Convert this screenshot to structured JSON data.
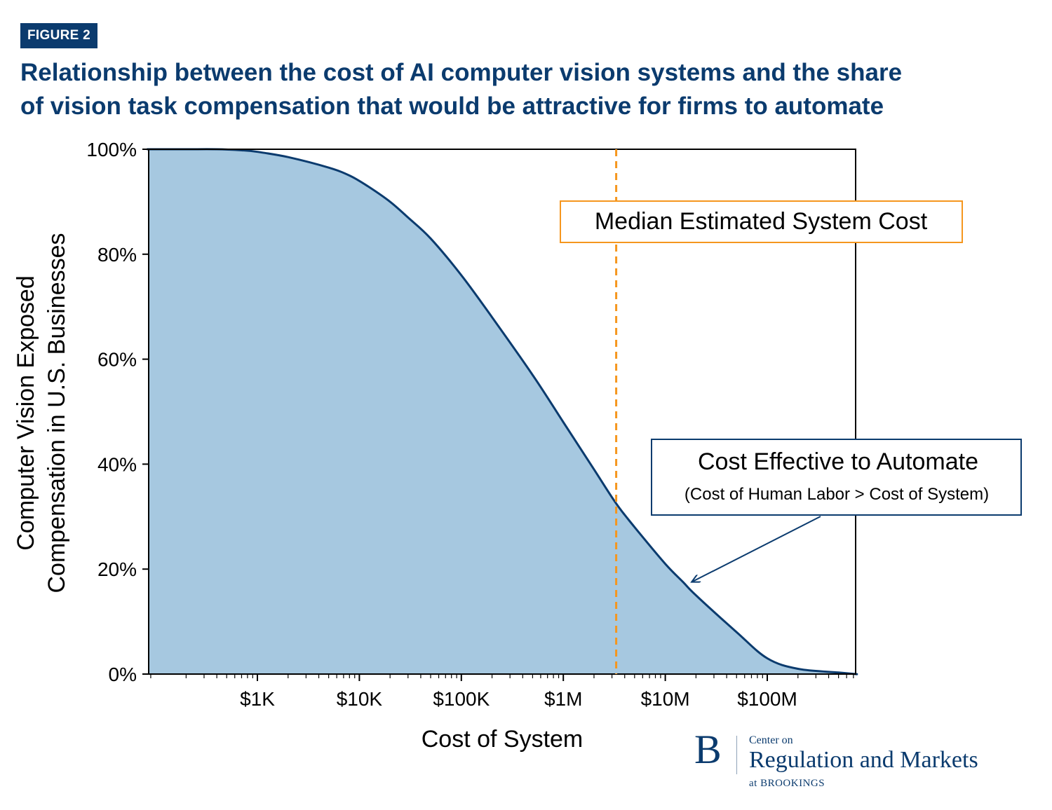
{
  "figure_label": "FIGURE 2",
  "title_lines": [
    "Relationship between the cost of AI computer vision systems and the share",
    "of vision task compensation that would be attractive for firms to automate"
  ],
  "colors": {
    "brand": "#0b3b6e",
    "fill": "#a6c8e0",
    "line": "#0b3b6e",
    "median_line": "#f5961e",
    "median_box": "#f5961e"
  },
  "chart_data": {
    "type": "area",
    "xscale": "log",
    "xlabel": "Cost of System",
    "ylabel_lines": [
      "Computer Vision Exposed",
      "Compensation in U.S. Businesses"
    ],
    "xlim": [
      10,
      100000000000
    ],
    "ylim": [
      0,
      100
    ],
    "xticks": [
      {
        "value": 1000,
        "label": "$1K"
      },
      {
        "value": 10000,
        "label": "$10K"
      },
      {
        "value": 100000,
        "label": "$100K"
      },
      {
        "value": 1000000,
        "label": "$1M"
      },
      {
        "value": 10000000,
        "label": "$10M"
      },
      {
        "value": 100000000,
        "label": "$100M"
      }
    ],
    "yticks": [
      {
        "value": 0,
        "label": "0%"
      },
      {
        "value": 20,
        "label": "20%"
      },
      {
        "value": 40,
        "label": "40%"
      },
      {
        "value": 60,
        "label": "60%"
      },
      {
        "value": 80,
        "label": "80%"
      },
      {
        "value": 100,
        "label": "100%"
      }
    ],
    "series": [
      {
        "x": [
          90,
          200,
          400,
          700,
          1000,
          2000,
          5000,
          8000,
          12000,
          20000,
          30000,
          50000,
          100000,
          200000,
          500000,
          1000000,
          2000000,
          3300000,
          5000000,
          10000000,
          15000000,
          20000000,
          50000000,
          100000000,
          200000000,
          500000000,
          1000000000
        ],
        "y": [
          100,
          100,
          100,
          99.8,
          99.5,
          98.5,
          96.5,
          95,
          93,
          90,
          87,
          83,
          76,
          68,
          57,
          48,
          39,
          32.5,
          28,
          21,
          17.5,
          15,
          8,
          3,
          1,
          0.3,
          0
        ]
      }
    ],
    "median_cost": 3300000,
    "annotations": {
      "median_label": "Median Estimated System Cost",
      "cost_effective_title": "Cost Effective to Automate",
      "cost_effective_subtitle": "(Cost of Human Labor > Cost of System)",
      "arrow_target": {
        "x": 17000000,
        "y": 17
      }
    }
  },
  "logo": {
    "letter": "B",
    "small_text": "Center on",
    "main_text": "Regulation and Markets",
    "sub_text": "at BROOKINGS"
  }
}
